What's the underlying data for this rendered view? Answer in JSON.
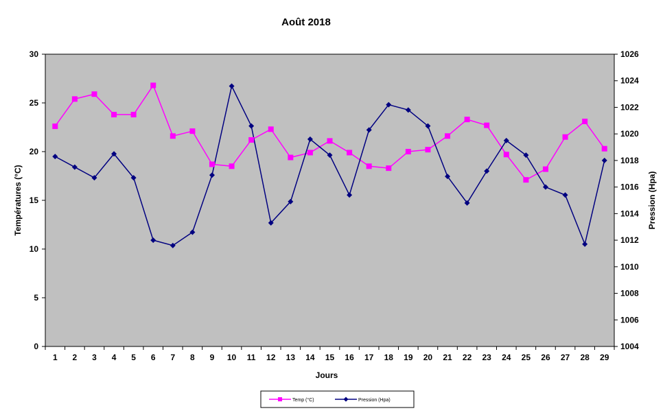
{
  "chart_data": {
    "type": "line",
    "title": "Août 2018",
    "xlabel": "Jours",
    "ylabel_left": "Températures (°C)",
    "ylabel_right": "Pression (Hpa)",
    "x": [
      1,
      2,
      3,
      4,
      5,
      6,
      7,
      8,
      9,
      10,
      11,
      12,
      13,
      14,
      15,
      16,
      17,
      18,
      19,
      20,
      21,
      22,
      23,
      24,
      25,
      26,
      27,
      28,
      29
    ],
    "ylim_left": [
      0,
      30
    ],
    "yticks_left": [
      0,
      5,
      10,
      15,
      20,
      25,
      30
    ],
    "ylim_right": [
      1004,
      1026
    ],
    "yticks_right": [
      1004,
      1006,
      1008,
      1010,
      1012,
      1014,
      1016,
      1018,
      1020,
      1022,
      1024,
      1026
    ],
    "plot_background": "#c0c0c0",
    "grid": false,
    "legend_position": "bottom",
    "series": [
      {
        "name": "Temp (°C)",
        "axis": "left",
        "color": "#ff00ff",
        "marker": "square",
        "values": [
          22.6,
          25.4,
          25.9,
          23.8,
          23.8,
          26.8,
          21.6,
          22.1,
          18.7,
          18.5,
          21.2,
          22.3,
          19.4,
          19.9,
          21.1,
          19.9,
          18.5,
          18.3,
          20.0,
          20.2,
          21.6,
          23.3,
          22.7,
          19.7,
          17.1,
          18.2,
          21.5,
          23.1,
          20.3
        ]
      },
      {
        "name": "Pression (Hpa)",
        "axis": "right",
        "color": "#000080",
        "marker": "diamond",
        "values": [
          1018.3,
          1017.5,
          1016.7,
          1018.5,
          1016.7,
          1012.0,
          1011.6,
          1012.6,
          1016.9,
          1023.6,
          1020.6,
          1013.3,
          1014.9,
          1019.6,
          1018.4,
          1015.4,
          1020.3,
          1022.2,
          1021.8,
          1020.6,
          1016.8,
          1014.8,
          1017.2,
          1019.5,
          1018.4,
          1016.0,
          1015.4,
          1011.7,
          1018.0
        ]
      }
    ]
  }
}
